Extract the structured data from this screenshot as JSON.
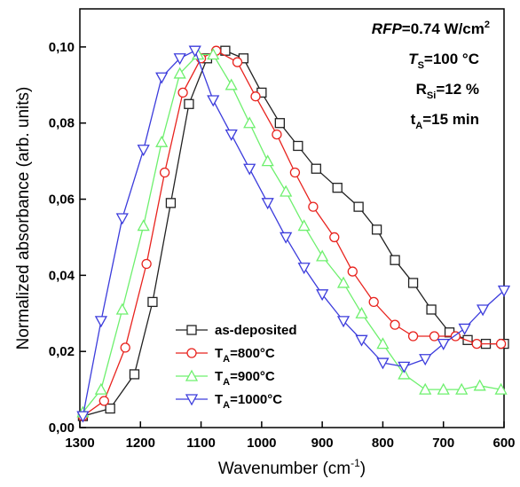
{
  "chart_data": {
    "type": "line",
    "y_label": "Normalized absorbance (arb. units)",
    "x_label": [
      "Wavenumber (cm",
      "-1",
      ")"
    ],
    "xlim": [
      1300,
      600
    ],
    "xticks": [
      1300,
      1200,
      1100,
      1000,
      900,
      800,
      700,
      600
    ],
    "ylim": [
      0,
      0.11
    ],
    "yticks": [
      {
        "value": 0,
        "label": "0,00"
      },
      {
        "value": 0.02,
        "label": "0,02"
      },
      {
        "value": 0.04,
        "label": "0,04"
      },
      {
        "value": 0.06,
        "label": "0,06"
      },
      {
        "value": 0.08,
        "label": "0,08"
      },
      {
        "value": 0.1,
        "label": "0,10"
      }
    ],
    "annotations": [
      [
        "RFP",
        "=0.74 W/cm",
        "2"
      ],
      [
        "T",
        "S",
        "=100 °C"
      ],
      [
        "R",
        "Si",
        "=12 %"
      ],
      [
        "t",
        "A",
        "=15 min"
      ]
    ],
    "series": [
      {
        "name": "as-deposited",
        "color": "#222222",
        "marker": "square",
        "x": [
          1295,
          1250,
          1210,
          1180,
          1150,
          1120,
          1090,
          1060,
          1030,
          1000,
          970,
          940,
          910,
          875,
          840,
          810,
          780,
          750,
          720,
          690,
          660,
          630,
          600
        ],
        "values": [
          0.003,
          0.005,
          0.014,
          0.033,
          0.059,
          0.085,
          0.097,
          0.099,
          0.097,
          0.088,
          0.08,
          0.074,
          0.068,
          0.063,
          0.058,
          0.052,
          0.044,
          0.038,
          0.031,
          0.025,
          0.023,
          0.022,
          0.022
        ]
      },
      {
        "name": [
          "T",
          "A",
          "=800°C"
        ],
        "color": "#e8231e",
        "marker": "circle",
        "x": [
          1295,
          1260,
          1225,
          1190,
          1160,
          1130,
          1100,
          1075,
          1040,
          1010,
          975,
          945,
          915,
          880,
          850,
          815,
          780,
          750,
          715,
          680,
          645,
          605
        ],
        "values": [
          0.003,
          0.007,
          0.021,
          0.043,
          0.067,
          0.088,
          0.097,
          0.099,
          0.096,
          0.087,
          0.077,
          0.067,
          0.058,
          0.05,
          0.041,
          0.033,
          0.027,
          0.024,
          0.024,
          0.024,
          0.022,
          0.022
        ]
      },
      {
        "name": [
          "T",
          "A",
          "=900°C"
        ],
        "color": "#6ef06e",
        "marker": "triangle-up",
        "x": [
          1295,
          1265,
          1230,
          1195,
          1165,
          1135,
          1105,
          1080,
          1050,
          1020,
          990,
          960,
          930,
          900,
          865,
          835,
          800,
          765,
          730,
          700,
          670,
          640,
          605
        ],
        "values": [
          0.004,
          0.01,
          0.031,
          0.053,
          0.075,
          0.093,
          0.098,
          0.098,
          0.09,
          0.08,
          0.07,
          0.062,
          0.053,
          0.045,
          0.038,
          0.03,
          0.022,
          0.014,
          0.01,
          0.01,
          0.01,
          0.011,
          0.01
        ]
      },
      {
        "name": [
          "T",
          "A",
          "=1000°C"
        ],
        "color": "#3c3cdc",
        "marker": "triangle-down",
        "x": [
          1295,
          1265,
          1230,
          1195,
          1165,
          1135,
          1110,
          1080,
          1050,
          1020,
          990,
          960,
          930,
          900,
          865,
          835,
          800,
          765,
          730,
          700,
          665,
          635,
          600
        ],
        "values": [
          0.003,
          0.028,
          0.055,
          0.073,
          0.092,
          0.097,
          0.099,
          0.086,
          0.077,
          0.068,
          0.059,
          0.05,
          0.042,
          0.035,
          0.028,
          0.023,
          0.017,
          0.016,
          0.018,
          0.022,
          0.026,
          0.031,
          0.036
        ]
      }
    ]
  }
}
